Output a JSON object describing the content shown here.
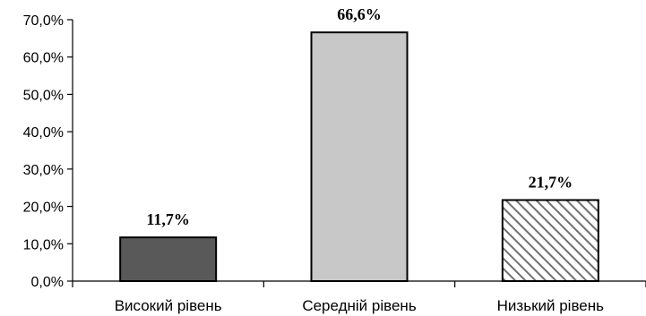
{
  "chart_data": {
    "type": "bar",
    "categories": [
      "Високий рівень",
      "Середній рівень",
      "Низький рівень"
    ],
    "values": [
      11.7,
      66.6,
      21.7
    ],
    "data_labels": [
      "11,7%",
      "66,6%",
      "21,7%"
    ],
    "y_ticks": [
      0,
      10,
      20,
      30,
      40,
      50,
      60,
      70
    ],
    "y_tick_labels": [
      "0,0%",
      "10,0%",
      "20,0%",
      "30,0%",
      "40,0%",
      "50,0%",
      "60,0%",
      "70,0%"
    ],
    "ylim": [
      0,
      70
    ],
    "title": "",
    "xlabel": "",
    "ylabel": "",
    "grid": false,
    "bar_fills": [
      "dark-gray",
      "light-gray",
      "diagonal-hatch"
    ],
    "colors": {
      "dark": "#595959",
      "light": "#c8c8c8",
      "hatch_line": "#707070",
      "outline": "#000000"
    }
  }
}
